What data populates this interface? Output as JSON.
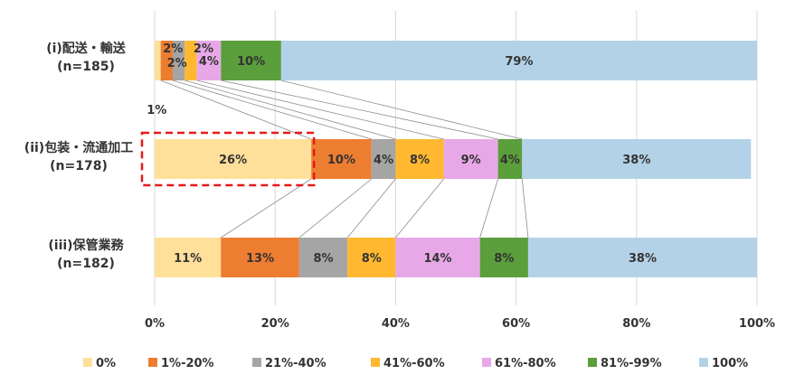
{
  "chart_data": {
    "type": "bar",
    "orientation": "horizontal",
    "stacked": "percent",
    "categories": [
      {
        "name": "(i)配送・輸送",
        "n": "(n=185)"
      },
      {
        "name": "(ii)包装・流通加工",
        "n": "(n=178)"
      },
      {
        "name": "(iii)保管業務",
        "n": "(n=182)"
      }
    ],
    "series": [
      {
        "name": "0%",
        "color": "#FFE09A",
        "values": [
          1,
          26,
          11
        ]
      },
      {
        "name": "1%-20%",
        "color": "#ED7D31",
        "values": [
          2,
          10,
          13
        ]
      },
      {
        "name": "21%-40%",
        "color": "#A5A5A5",
        "values": [
          2,
          4,
          8
        ]
      },
      {
        "name": "41%-60%",
        "color": "#FFB830",
        "values": [
          2,
          8,
          8
        ]
      },
      {
        "name": "61%-80%",
        "color": "#E8A8E8",
        "values": [
          4,
          9,
          14
        ]
      },
      {
        "name": "81%-99%",
        "color": "#5B9E3C",
        "values": [
          10,
          4,
          8
        ]
      },
      {
        "name": "100%",
        "color": "#B4D2E7",
        "values": [
          79,
          38,
          38
        ]
      }
    ],
    "labels": [
      [
        "1%",
        "2%",
        "2%",
        "2%",
        "4%",
        "10%",
        "79%"
      ],
      [
        "26%",
        "10%",
        "4%",
        "8%",
        "9%",
        "4%",
        "38%"
      ],
      [
        "11%",
        "13%",
        "8%",
        "8%",
        "14%",
        "8%",
        "38%"
      ]
    ],
    "xlim": [
      0,
      100
    ],
    "x_ticks": [
      "0%",
      "20%",
      "40%",
      "60%",
      "80%",
      "100%"
    ],
    "grid": true,
    "legend_position": "bottom",
    "highlight": {
      "category_index": 1,
      "series_index": 0,
      "style": "red dashed box"
    }
  }
}
